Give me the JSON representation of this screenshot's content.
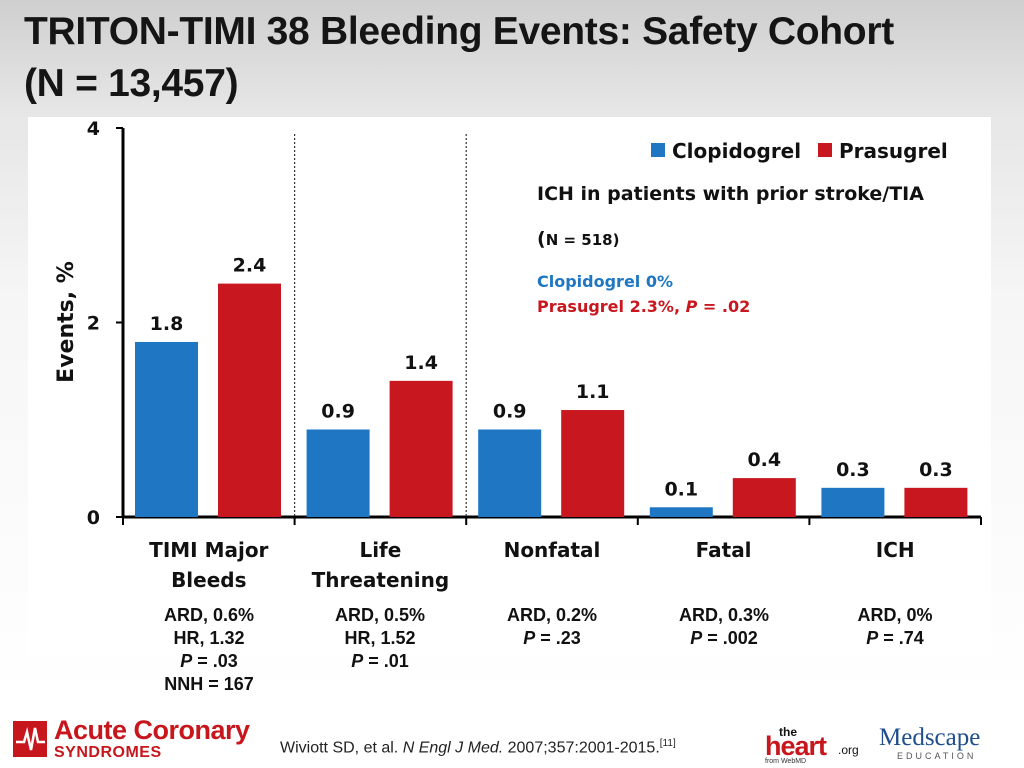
{
  "slide": {
    "title_line1": "TRITON-TIMI 38 Bleeding Events: Safety Cohort",
    "title_line2": "(N = 13,457)"
  },
  "chart_data": {
    "type": "bar",
    "ylabel": "Events, %",
    "ylim": [
      0,
      4
    ],
    "yticks": [
      0,
      2,
      4
    ],
    "categories": [
      [
        "TIMI Major",
        "Bleeds"
      ],
      [
        "Life",
        "Threatening"
      ],
      [
        "Nonfatal"
      ],
      [
        "Fatal"
      ],
      [
        "ICH"
      ]
    ],
    "series": [
      {
        "name": "Clopidogrel",
        "color": "#1f77c4",
        "values": [
          1.8,
          0.9,
          0.9,
          0.1,
          0.3
        ],
        "labels": [
          "1.8",
          "0.9",
          "0.9",
          "0.1",
          "0.3"
        ]
      },
      {
        "name": "Prasugrel",
        "color": "#c8171f",
        "values": [
          2.4,
          1.4,
          1.1,
          0.4,
          0.3
        ],
        "labels": [
          "2.4",
          "1.4",
          "1.1",
          "0.4",
          "0.3"
        ]
      }
    ],
    "separators_after_category": [
      0,
      1
    ],
    "annotation": {
      "heading": "ICH in patients with prior stroke/TIA",
      "n_open": "(",
      "n_text": "N = 518)",
      "clopidogrel_text": "Clopidogrel 0%",
      "prasugrel_prefix": "Prasugrel 2.3%, ",
      "prasugrel_p": "P",
      "prasugrel_suffix": " = .02"
    }
  },
  "stats": [
    {
      "ard": "ARD, 0.6%",
      "hr": "HR, 1.32",
      "p_label": "P",
      "p_value": " = .03",
      "nnh": "NNH = 167"
    },
    {
      "ard": "ARD, 0.5%",
      "hr": "HR, 1.52",
      "p_label": "P",
      "p_value": " = .01"
    },
    {
      "ard": "ARD, 0.2%",
      "p_label": "P",
      "p_value": " = .23"
    },
    {
      "ard": "ARD, 0.3%",
      "p_label": "P",
      "p_value": " = .002"
    },
    {
      "ard": "ARD, 0%",
      "p_label": "P",
      "p_value": " = .74"
    }
  ],
  "footer": {
    "acs_top": "Acute Coronary",
    "acs_bottom": "SYNDROMES",
    "citation_author": "Wiviott SD, et al. ",
    "citation_journal": "N Engl J Med.",
    "citation_rest": " 2007;357:2001-2015.",
    "citation_ref": "[11]",
    "heart_the": "the",
    "heart_main": "heart",
    "heart_org": ".org",
    "heart_from": "from WebMD",
    "medscape_main": "Medscape",
    "medscape_sub": "EDUCATION"
  }
}
